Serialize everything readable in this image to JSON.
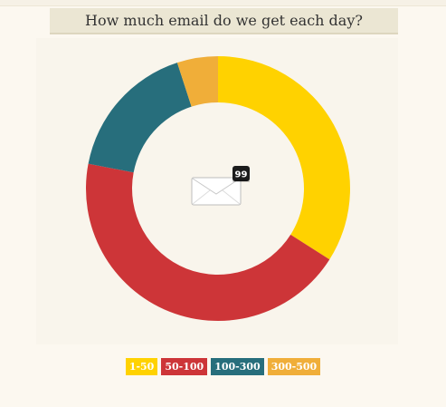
{
  "chart_data": {
    "type": "pie",
    "title": "How much email do we get each day?",
    "donut": true,
    "categories": [
      "1-50",
      "50-100",
      "100-300",
      "300-500"
    ],
    "values": [
      34,
      44,
      17,
      5
    ],
    "colors": [
      "#ffd200",
      "#cd3538",
      "#276e7c",
      "#f0ae39"
    ],
    "legend_placement": "bottom",
    "center_badge": "99"
  }
}
